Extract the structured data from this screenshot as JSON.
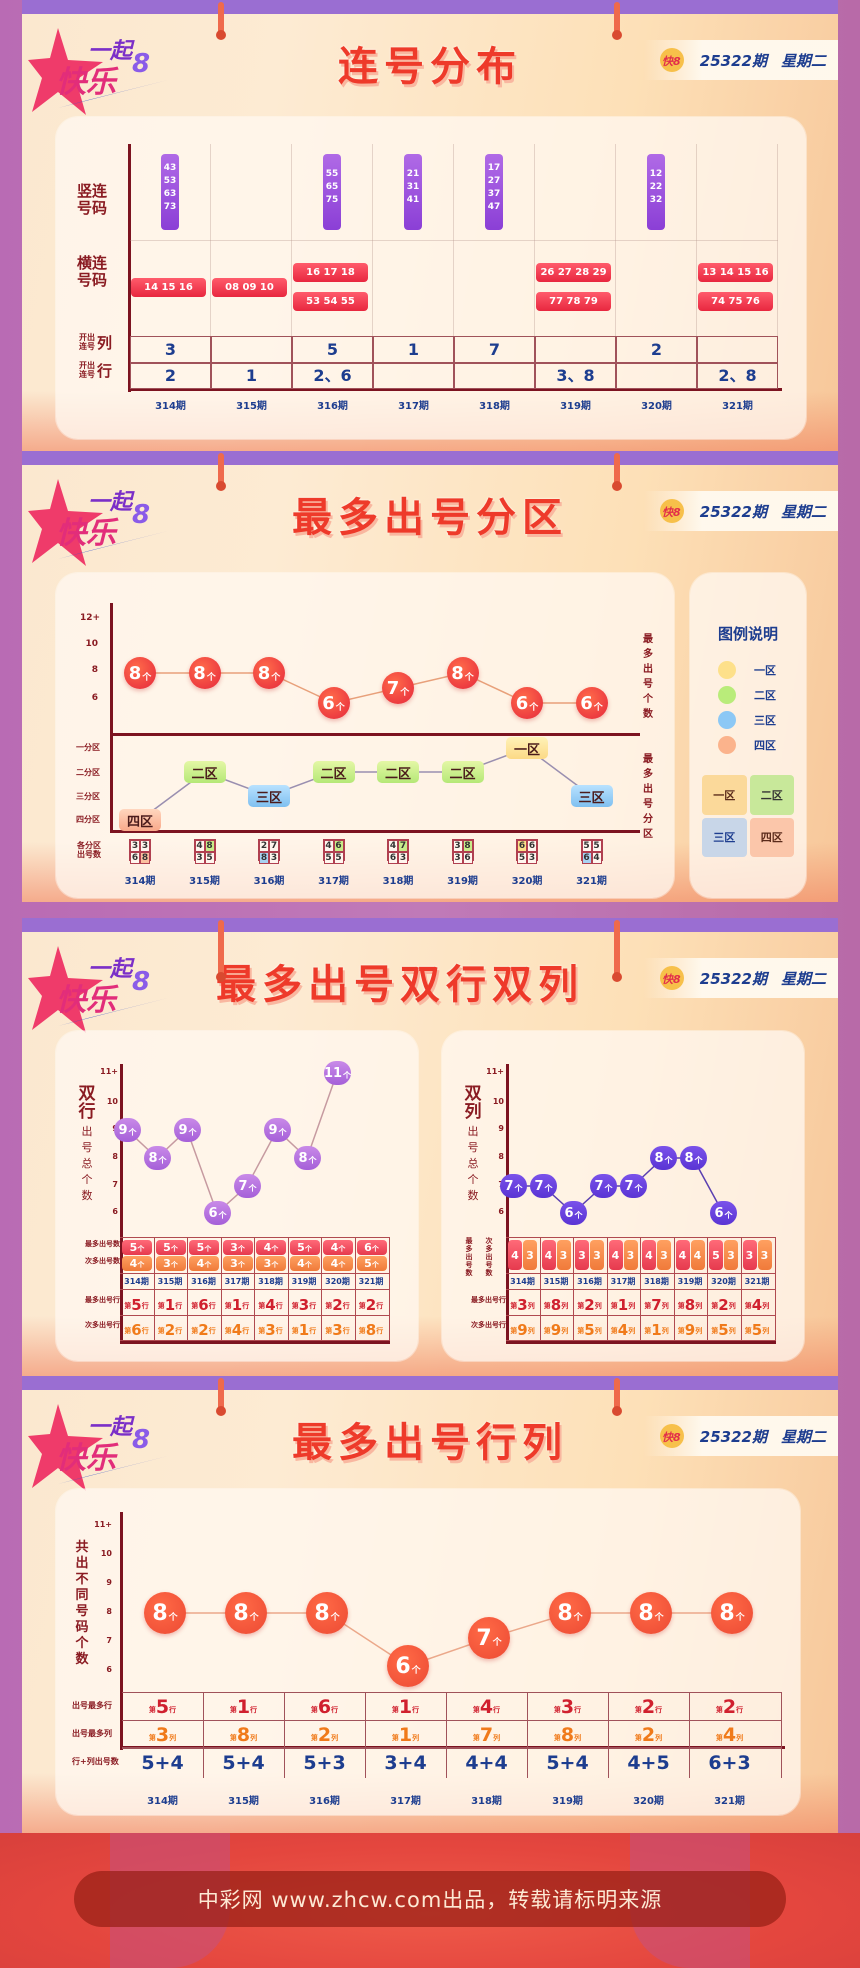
{
  "header": {
    "brand_logo_text": "一起快乐8",
    "issue_label": "25322期",
    "weekday_label": "星期二"
  },
  "periods": [
    "314期",
    "315期",
    "316期",
    "317期",
    "318期",
    "319期",
    "320期",
    "321期"
  ],
  "section1": {
    "title": "连号分布",
    "row_labels": {
      "vertical": "竖连\n号码",
      "horizontal": "横连\n号码",
      "col_small": "开出\n连号",
      "col_big": "列",
      "row_small": "开出\n连号",
      "row_big": "行"
    },
    "vertical_consecutive": [
      [
        "43",
        "53",
        "63",
        "73"
      ],
      [],
      [
        "55",
        "65",
        "75"
      ],
      [
        "21",
        "31",
        "41"
      ],
      [
        "17",
        "27",
        "37",
        "47"
      ],
      [],
      [
        "12",
        "22",
        "32"
      ],
      []
    ],
    "horizontal_consecutive": [
      [
        "14 15 16"
      ],
      [
        "08 09 10"
      ],
      [
        "16 17 18",
        "53 54 55"
      ],
      [],
      [],
      [
        "26 27 28 29",
        "77 78 79"
      ],
      [],
      [
        "13 14 15 16",
        "74 75 76"
      ]
    ],
    "columns_opened": [
      "3",
      "",
      "5",
      "1",
      "7",
      "",
      "2",
      ""
    ],
    "rows_opened": [
      "2",
      "1",
      "2、6",
      "",
      "",
      "3、8",
      "",
      "2、8"
    ]
  },
  "section2": {
    "title": "最多出号分区",
    "y_ticks": [
      "12+",
      "10",
      "8",
      "6"
    ],
    "zone_ticks": [
      "一分区",
      "二分区",
      "三分区",
      "四分区"
    ],
    "right_label_top": "最多出号个数",
    "right_label_bottom": "最多出号分区",
    "row_label_counts": "各分区\n出号数",
    "max_counts": [
      "8",
      "8",
      "8",
      "6",
      "7",
      "8",
      "6",
      "6"
    ],
    "unit": "个",
    "max_zones": [
      "四区",
      "二区",
      "三区",
      "二区",
      "二区",
      "二区",
      "一区",
      "三区"
    ],
    "zone_grids": [
      {
        "cells": [
          "3",
          "3",
          "6",
          "8"
        ],
        "hl": [
          3
        ]
      },
      {
        "cells": [
          "4",
          "8",
          "3",
          "5"
        ],
        "hl": [
          1
        ]
      },
      {
        "cells": [
          "2",
          "7",
          "8",
          "3"
        ],
        "hl": [
          2
        ]
      },
      {
        "cells": [
          "4",
          "6",
          "5",
          "5"
        ],
        "hl": [
          1
        ]
      },
      {
        "cells": [
          "4",
          "7",
          "6",
          "3"
        ],
        "hl": [
          1
        ]
      },
      {
        "cells": [
          "3",
          "8",
          "3",
          "6"
        ],
        "hl": [
          1
        ]
      },
      {
        "cells": [
          "6",
          "6",
          "5",
          "3"
        ],
        "hl": [
          0
        ]
      },
      {
        "cells": [
          "5",
          "5",
          "6",
          "4"
        ],
        "hl": [
          2
        ]
      }
    ],
    "legend": {
      "title": "图例说明",
      "items": [
        {
          "label": "一区",
          "color": "#fde08a"
        },
        {
          "label": "二区",
          "color": "#b9ec7a"
        },
        {
          "label": "三区",
          "color": "#8cc8f5"
        },
        {
          "label": "四区",
          "color": "#fbb38c"
        }
      ],
      "grid_labels": [
        "一区",
        "二区",
        "三区",
        "四区"
      ]
    }
  },
  "section3": {
    "title": "最多出号双行双列",
    "rows_chart": {
      "side_label_big": "双行",
      "side_label_small": "出号总个数",
      "y_ticks": [
        "11+",
        "10",
        "9",
        "8",
        "7",
        "6"
      ],
      "values": [
        "9",
        "8",
        "9",
        "6",
        "7",
        "9",
        "8",
        "11"
      ],
      "label_most": "最多出号数",
      "label_second": "次多出号数",
      "most_counts": [
        "5",
        "5",
        "5",
        "3",
        "4",
        "5",
        "4",
        "6"
      ],
      "second_counts": [
        "4",
        "3",
        "4",
        "3",
        "3",
        "4",
        "4",
        "5"
      ],
      "label_most_row": "最多出号行",
      "label_second_row": "次多出号行",
      "most_rows": [
        "5",
        "1",
        "6",
        "1",
        "4",
        "3",
        "2",
        "2"
      ],
      "second_rows": [
        "6",
        "2",
        "2",
        "4",
        "3",
        "1",
        "3",
        "8"
      ],
      "prefix": "第",
      "suffix": "行"
    },
    "cols_chart": {
      "side_label_big": "双列",
      "side_label_small": "出号总个数",
      "y_ticks": [
        "11+",
        "10",
        "9",
        "8",
        "7",
        "6"
      ],
      "values": [
        "7",
        "7",
        "6",
        "7",
        "7",
        "8",
        "8",
        "6"
      ],
      "label_most": "最多出号数",
      "label_second": "次多出号数",
      "most_counts": [
        "4",
        "4",
        "3",
        "4",
        "4",
        "4",
        "5",
        "3"
      ],
      "second_counts": [
        "3",
        "3",
        "3",
        "3",
        "3",
        "4",
        "3",
        "3"
      ],
      "label_most_col": "最多出号行",
      "label_second_col": "次多出号行",
      "most_cols": [
        "3",
        "8",
        "2",
        "1",
        "7",
        "8",
        "2",
        "4"
      ],
      "second_cols": [
        "9",
        "9",
        "5",
        "4",
        "1",
        "9",
        "5",
        "5"
      ],
      "prefix": "第",
      "suffix": "列"
    }
  },
  "section4": {
    "title": "最多出号行列",
    "side_label": "共出不同号码个数",
    "y_ticks": [
      "11+",
      "10",
      "9",
      "8",
      "7",
      "6"
    ],
    "values": [
      "8",
      "8",
      "8",
      "6",
      "7",
      "8",
      "8",
      "8"
    ],
    "unit": "个",
    "label_row": "出号最多行",
    "label_col": "出号最多列",
    "label_sum": "行+列出号数",
    "most_rows": [
      "5",
      "1",
      "6",
      "1",
      "4",
      "3",
      "2",
      "2"
    ],
    "most_cols": [
      "3",
      "8",
      "2",
      "1",
      "7",
      "8",
      "2",
      "4"
    ],
    "sums": [
      "5+4",
      "5+4",
      "5+3",
      "3+4",
      "4+4",
      "5+4",
      "4+5",
      "6+3"
    ],
    "prefix": "第",
    "row_suffix": "行",
    "col_suffix": "列"
  },
  "footer": {
    "text": "中彩网 www.zhcw.com出品，转载请标明来源"
  },
  "colors": {
    "title_red": "#ee3a2a",
    "navy": "#1d3d8f",
    "axis_maroon": "#7c1320",
    "purple": "#9a4fe0",
    "violet": "#6b3fe0",
    "dot_red": "#e8353c",
    "orange": "#f08a3c"
  },
  "chart_data": [
    {
      "type": "table",
      "title": "连号分布",
      "categories": [
        "314期",
        "315期",
        "316期",
        "317期",
        "318期",
        "319期",
        "320期",
        "321期"
      ],
      "series": [
        {
          "name": "竖连号码",
          "values": [
            "43 53 63 73",
            "",
            "55 65 75",
            "21 31 41",
            "17 27 37 47",
            "",
            "12 22 32",
            ""
          ]
        },
        {
          "name": "横连号码",
          "values": [
            "14 15 16",
            "08 09 10",
            "16 17 18 / 53 54 55",
            "",
            "",
            "26 27 28 29 / 77 78 79",
            "",
            "13 14 15 16 / 74 75 76"
          ]
        },
        {
          "name": "开出连号列",
          "values": [
            "3",
            "",
            "5",
            "1",
            "7",
            "",
            "2",
            ""
          ]
        },
        {
          "name": "开出连号行",
          "values": [
            "2",
            "1",
            "2、6",
            "",
            "",
            "3、8",
            "",
            "2、8"
          ]
        }
      ]
    },
    {
      "type": "line",
      "title": "最多出号分区",
      "categories": [
        "314期",
        "315期",
        "316期",
        "317期",
        "318期",
        "319期",
        "320期",
        "321期"
      ],
      "series": [
        {
          "name": "最多出号个数",
          "values": [
            8,
            8,
            8,
            6,
            7,
            8,
            6,
            6
          ]
        },
        {
          "name": "最多出号分区",
          "values": [
            "四区",
            "二区",
            "三区",
            "二区",
            "二区",
            "二区",
            "一区",
            "三区"
          ]
        }
      ],
      "ylabel": "最多出号个数",
      "yticks": [
        "6",
        "8",
        "10",
        "12+"
      ],
      "zone_counts": [
        [
          3,
          3,
          6,
          8
        ],
        [
          4,
          8,
          3,
          5
        ],
        [
          2,
          7,
          8,
          3
        ],
        [
          4,
          6,
          5,
          5
        ],
        [
          4,
          7,
          6,
          3
        ],
        [
          3,
          8,
          3,
          6
        ],
        [
          6,
          6,
          5,
          3
        ],
        [
          5,
          5,
          6,
          4
        ]
      ]
    },
    {
      "type": "line",
      "title": "双行出号总个数",
      "categories": [
        "314期",
        "315期",
        "316期",
        "317期",
        "318期",
        "319期",
        "320期",
        "321期"
      ],
      "series": [
        {
          "name": "双行出号总个数",
          "values": [
            9,
            8,
            9,
            6,
            7,
            9,
            8,
            11
          ]
        },
        {
          "name": "最多出号数",
          "values": [
            5,
            5,
            5,
            3,
            4,
            5,
            4,
            6
          ]
        },
        {
          "name": "次多出号数",
          "values": [
            4,
            3,
            4,
            3,
            3,
            4,
            4,
            5
          ]
        },
        {
          "name": "最多出号行",
          "values": [
            5,
            1,
            6,
            1,
            4,
            3,
            2,
            2
          ]
        },
        {
          "name": "次多出号行",
          "values": [
            6,
            2,
            2,
            4,
            3,
            1,
            3,
            8
          ]
        }
      ],
      "yticks": [
        "6",
        "7",
        "8",
        "9",
        "10",
        "11+"
      ]
    },
    {
      "type": "line",
      "title": "双列出号总个数",
      "categories": [
        "314期",
        "315期",
        "316期",
        "317期",
        "318期",
        "319期",
        "320期",
        "321期"
      ],
      "series": [
        {
          "name": "双列出号总个数",
          "values": [
            7,
            7,
            6,
            7,
            7,
            8,
            8,
            6
          ]
        },
        {
          "name": "最多出号数",
          "values": [
            4,
            4,
            3,
            4,
            4,
            4,
            5,
            3
          ]
        },
        {
          "name": "次多出号数",
          "values": [
            3,
            3,
            3,
            3,
            3,
            4,
            3,
            3
          ]
        },
        {
          "name": "最多出号列",
          "values": [
            3,
            8,
            2,
            1,
            7,
            8,
            2,
            4
          ]
        },
        {
          "name": "次多出号列",
          "values": [
            9,
            9,
            5,
            4,
            1,
            9,
            5,
            5
          ]
        }
      ],
      "yticks": [
        "6",
        "7",
        "8",
        "9",
        "10",
        "11+"
      ]
    },
    {
      "type": "line",
      "title": "最多出号行列",
      "categories": [
        "314期",
        "315期",
        "316期",
        "317期",
        "318期",
        "319期",
        "320期",
        "321期"
      ],
      "series": [
        {
          "name": "共出不同号码个数",
          "values": [
            8,
            8,
            8,
            6,
            7,
            8,
            8,
            8
          ]
        },
        {
          "name": "出号最多行",
          "values": [
            5,
            1,
            6,
            1,
            4,
            3,
            2,
            2
          ]
        },
        {
          "name": "出号最多列",
          "values": [
            3,
            8,
            2,
            1,
            7,
            8,
            2,
            4
          ]
        },
        {
          "name": "行+列出号数",
          "values": [
            "5+4",
            "5+4",
            "5+3",
            "3+4",
            "4+4",
            "5+4",
            "4+5",
            "6+3"
          ]
        }
      ],
      "yticks": [
        "6",
        "7",
        "8",
        "9",
        "10",
        "11+"
      ]
    }
  ]
}
